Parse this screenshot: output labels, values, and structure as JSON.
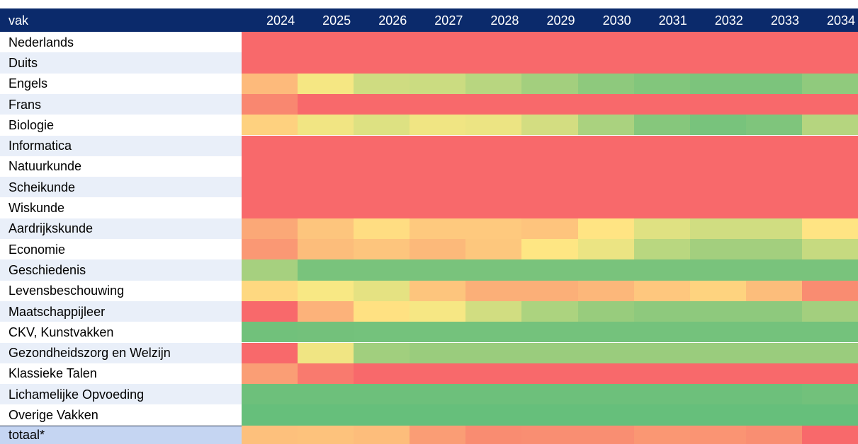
{
  "table": {
    "header": [
      "vak",
      "2024",
      "2025",
      "2026",
      "2027",
      "2028",
      "2029",
      "2030",
      "2031",
      "2032",
      "2033",
      "2034"
    ],
    "rows": [
      {
        "label": "Nederlands",
        "colors": [
          "#f8696b",
          "#f8696b",
          "#f8696b",
          "#f8696b",
          "#f8696b",
          "#f8696b",
          "#f8696b",
          "#f8696b",
          "#f8696b",
          "#f8696b",
          "#f8696b"
        ]
      },
      {
        "label": "Duits",
        "colors": [
          "#f8696b",
          "#f8696b",
          "#f8696b",
          "#f8696b",
          "#f8696b",
          "#f8696b",
          "#f8696b",
          "#f8696b",
          "#f8696b",
          "#f8696b",
          "#f8696b"
        ]
      },
      {
        "label": "Engels",
        "colors": [
          "#fdba7b",
          "#f5e783",
          "#cfdc81",
          "#cbdc81",
          "#b8d680",
          "#a3cf7e",
          "#8ec97d",
          "#82c67c",
          "#7cc47c",
          "#7cc47c",
          "#90ca7d"
        ]
      },
      {
        "label": "Frans",
        "colors": [
          "#f98770",
          "#f8696b",
          "#f8696b",
          "#f8696b",
          "#f8696b",
          "#f8696b",
          "#f8696b",
          "#f8696b",
          "#f8696b",
          "#f8696b",
          "#f8696b"
        ]
      },
      {
        "label": "Biologie",
        "colors": [
          "#fed17f",
          "#f1e583",
          "#dde182",
          "#f0e583",
          "#ece483",
          "#d3dd81",
          "#aad27f",
          "#86c77c",
          "#78c37c",
          "#7fc57c",
          "#b5d57f"
        ]
      },
      {
        "label": "Informatica",
        "colors": [
          "#f8696b",
          "#f8696b",
          "#f8696b",
          "#f8696b",
          "#f8696b",
          "#f8696b",
          "#f8696b",
          "#f8696b",
          "#f8696b",
          "#f8696b",
          "#f8696b"
        ]
      },
      {
        "label": "Natuurkunde",
        "colors": [
          "#f8696b",
          "#f8696b",
          "#f8696b",
          "#f8696b",
          "#f8696b",
          "#f8696b",
          "#f8696b",
          "#f8696b",
          "#f8696b",
          "#f8696b",
          "#f8696b"
        ]
      },
      {
        "label": "Scheikunde",
        "colors": [
          "#f8696b",
          "#f8696b",
          "#f8696b",
          "#f8696b",
          "#f8696b",
          "#f8696b",
          "#f8696b",
          "#f8696b",
          "#f8696b",
          "#f8696b",
          "#f8696b"
        ]
      },
      {
        "label": "Wiskunde",
        "colors": [
          "#f8696b",
          "#f8696b",
          "#f8696b",
          "#f8696b",
          "#f8696b",
          "#f8696b",
          "#f8696b",
          "#f8696b",
          "#f8696b",
          "#f8696b",
          "#f8696b"
        ]
      },
      {
        "label": "Aardrijkskunde",
        "colors": [
          "#fba877",
          "#fdc57d",
          "#ffdd82",
          "#fec97e",
          "#fec97e",
          "#fec47d",
          "#ffe483",
          "#dfe182",
          "#d0dd81",
          "#d0dd81",
          "#ffe483"
        ]
      },
      {
        "label": "Economie",
        "colors": [
          "#fa9874",
          "#fcbd7b",
          "#fdc57d",
          "#fcb97a",
          "#fdc77d",
          "#fee683",
          "#ebe483",
          "#b9d780",
          "#a3cf7e",
          "#a3cf7e",
          "#c6da80"
        ]
      },
      {
        "label": "Geschiedenis",
        "colors": [
          "#a6d07f",
          "#79c37c",
          "#79c37c",
          "#79c37c",
          "#79c37c",
          "#79c37c",
          "#79c37c",
          "#79c37c",
          "#79c37c",
          "#79c37c",
          "#79c37c"
        ]
      },
      {
        "label": "Levensbeschouwing",
        "colors": [
          "#fed880",
          "#f8e884",
          "#e5e282",
          "#fdc57d",
          "#fbaf78",
          "#fbaf78",
          "#fcb77a",
          "#fec77e",
          "#fed37f",
          "#fcbd7b",
          "#f98c71"
        ]
      },
      {
        "label": "Maatschappijleer",
        "colors": [
          "#f8696b",
          "#fcb27a",
          "#ffe182",
          "#f6e784",
          "#d1dd81",
          "#acd37f",
          "#98cc7d",
          "#8ec97d",
          "#8ec97d",
          "#8ec97d",
          "#a3cf7e"
        ]
      },
      {
        "label": "CKV, Kunstvakken",
        "colors": [
          "#71c17b",
          "#73c17b",
          "#74c27c",
          "#74c27c",
          "#74c27c",
          "#74c27c",
          "#74c27c",
          "#74c27c",
          "#74c27c",
          "#74c27c",
          "#74c27c"
        ]
      },
      {
        "label": "Gezondheidszorg en Welzijn",
        "colors": [
          "#f8696b",
          "#f0e583",
          "#a1cf7e",
          "#9acc7d",
          "#9acc7d",
          "#9acc7d",
          "#9acc7d",
          "#9acc7d",
          "#9acc7d",
          "#9acc7d",
          "#9acc7d"
        ]
      },
      {
        "label": "Klassieke Talen",
        "colors": [
          "#fa9e75",
          "#f97a6e",
          "#f8696b",
          "#f8696b",
          "#f8696b",
          "#f8696b",
          "#f8696b",
          "#f8696b",
          "#f8696b",
          "#f8696b",
          "#f8696b"
        ]
      },
      {
        "label": "Lichamelijke Opvoeding",
        "colors": [
          "#6dc07b",
          "#6dc07b",
          "#6dc07b",
          "#6dc07b",
          "#6dc07b",
          "#6dc07b",
          "#6dc07b",
          "#6dc07b",
          "#6dc07b",
          "#6dc07b",
          "#72c17b"
        ]
      },
      {
        "label": "Overige Vakken",
        "colors": [
          "#66bf7b",
          "#66bf7b",
          "#66bf7b",
          "#66bf7b",
          "#66bf7b",
          "#66bf7b",
          "#66bf7b",
          "#66bf7b",
          "#66bf7b",
          "#66bf7b",
          "#66bf7b"
        ]
      },
      {
        "label": "totaal*",
        "colors": [
          "#fdc07c",
          "#fdc27c",
          "#fdbd7b",
          "#fa9d75",
          "#f98c71",
          "#f98e72",
          "#f98e72",
          "#fa9773",
          "#fa9473",
          "#f98e72",
          "#f8696b"
        ]
      }
    ]
  }
}
